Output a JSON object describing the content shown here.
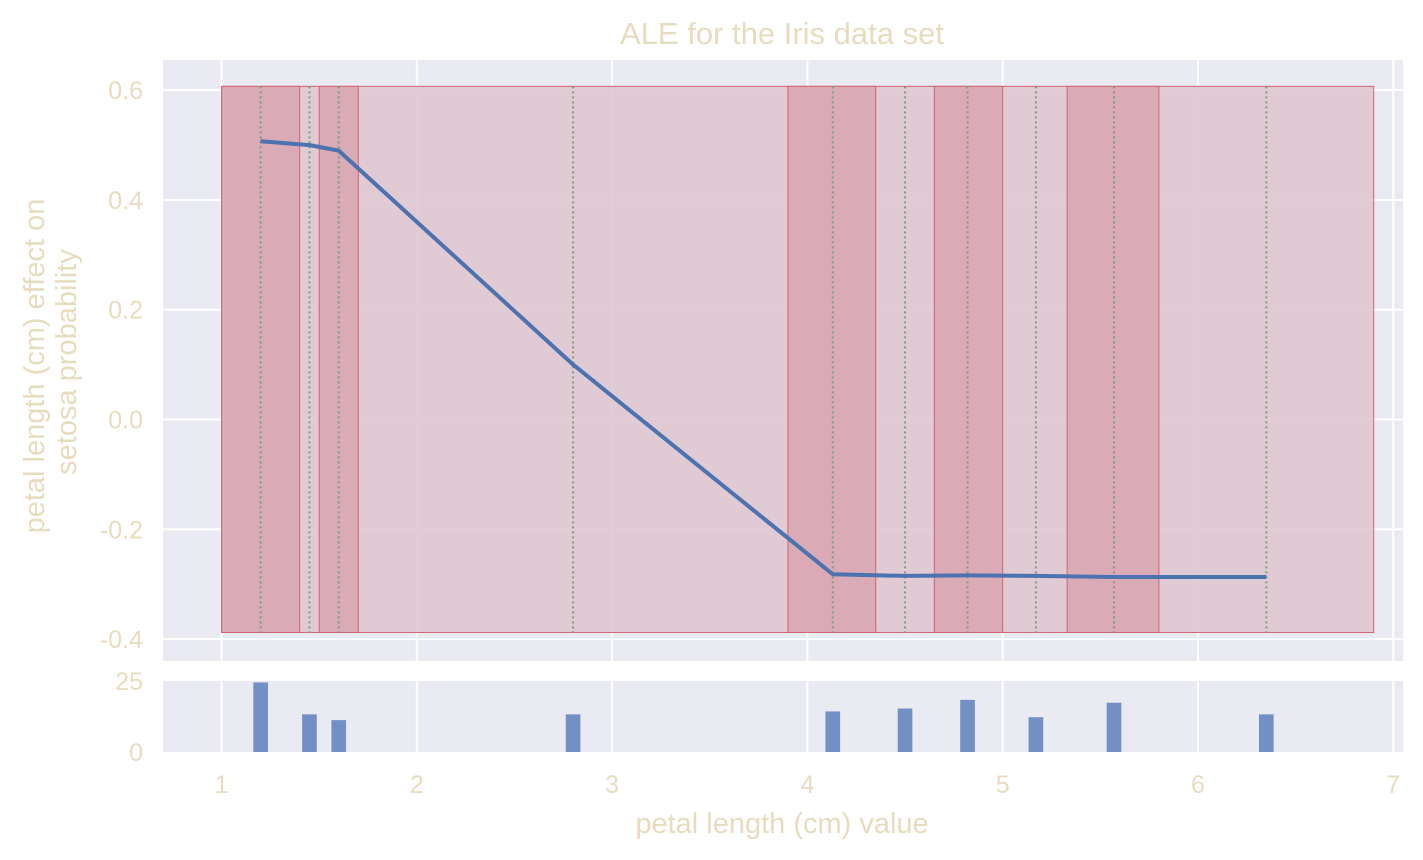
{
  "colors": {
    "panel": "#eaeaf2",
    "grid": "#ffffff",
    "text": "#e8dcbf",
    "line": "#4c72b0",
    "bar": "#7390c4",
    "interval_light": "#dfc6d0",
    "interval_dark": "#d8a6b0",
    "interval_edge": "#d06470",
    "tick_marker": "#7aa07a"
  },
  "chart_data": [
    {
      "type": "line",
      "title": "ALE for the Iris data set",
      "xlabel": "petal length (cm) value",
      "ylabel": "petal length (cm) effect on setosa probability",
      "ylabel_lines": [
        "petal length (cm) effect on",
        "setosa probability"
      ],
      "xlim": [
        0.7,
        7.05
      ],
      "ylim": [
        -0.44,
        0.655
      ],
      "x_ticks": [
        1,
        2,
        3,
        4,
        5,
        6,
        7
      ],
      "x_tick_labels": [
        "1",
        "2",
        "3",
        "4",
        "5",
        "6",
        "7"
      ],
      "y_ticks": [
        -0.4,
        -0.2,
        0.0,
        0.2,
        0.4,
        0.6
      ],
      "y_tick_labels": [
        "-0.4",
        "-0.2",
        "0.0",
        "0.2",
        "0.4",
        "0.6"
      ],
      "grid": true,
      "series": [
        {
          "x": [
            1.2,
            1.45,
            1.6,
            2.8,
            4.13,
            4.5,
            4.82,
            5.17,
            5.57,
            6.35
          ],
          "y": [
            0.507,
            0.5,
            0.49,
            0.1,
            -0.282,
            -0.285,
            -0.284,
            -0.285,
            -0.287,
            -0.287
          ]
        }
      ],
      "intervals": [
        {
          "x0": 1.0,
          "x1": 1.4,
          "y0": -0.388,
          "y1": 0.607,
          "shade": "dark"
        },
        {
          "x0": 1.5,
          "x1": 1.7,
          "y0": -0.388,
          "y1": 0.607,
          "shade": "dark"
        },
        {
          "x0": 1.0,
          "x1": 6.9,
          "y0": -0.388,
          "y1": 0.607,
          "shade": "light"
        },
        {
          "x0": 3.9,
          "x1": 4.35,
          "y0": -0.388,
          "y1": 0.607,
          "shade": "dark"
        },
        {
          "x0": 4.65,
          "x1": 5.0,
          "y0": -0.388,
          "y1": 0.607,
          "shade": "dark"
        },
        {
          "x0": 5.33,
          "x1": 5.8,
          "y0": -0.388,
          "y1": 0.607,
          "shade": "dark"
        }
      ],
      "marker_lines_x": [
        1.2,
        1.45,
        1.6,
        2.8,
        4.13,
        4.5,
        4.82,
        5.17,
        5.57,
        6.35
      ]
    },
    {
      "type": "bar",
      "xlabel": "petal length (cm) value",
      "xlim": [
        0.7,
        7.05
      ],
      "ylim": [
        0,
        24.5
      ],
      "y_ticks": [
        0,
        25
      ],
      "y_tick_labels": [
        "0",
        "25"
      ],
      "x_ticks": [
        1,
        2,
        3,
        4,
        5,
        6,
        7
      ],
      "x_tick_labels": [
        "1",
        "2",
        "3",
        "4",
        "5",
        "6",
        "7"
      ],
      "bar_width": 0.075,
      "x": [
        1.2,
        1.45,
        1.6,
        2.8,
        4.13,
        4.5,
        4.82,
        5.17,
        5.57,
        6.35
      ],
      "values": [
        24,
        13,
        11,
        13,
        14,
        15,
        18,
        12,
        17,
        13
      ]
    }
  ]
}
